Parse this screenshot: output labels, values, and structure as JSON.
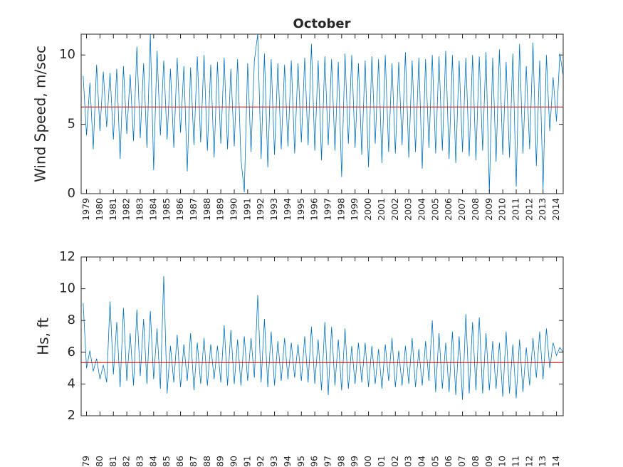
{
  "chart_data": [
    {
      "type": "line",
      "title": "October",
      "ylabel": "Wind Speed, m/sec",
      "x": [
        1978.75,
        1979,
        1979.25,
        1979.5,
        1979.75,
        1980,
        1980.25,
        1980.5,
        1980.75,
        1981,
        1981.25,
        1981.5,
        1981.75,
        1982,
        1982.25,
        1982.5,
        1982.75,
        1983,
        1983.25,
        1983.5,
        1983.75,
        1984,
        1984.25,
        1984.5,
        1984.75,
        1985,
        1985.25,
        1985.5,
        1985.75,
        1986,
        1986.25,
        1986.5,
        1986.75,
        1987,
        1987.25,
        1987.5,
        1987.75,
        1988,
        1988.25,
        1988.5,
        1988.75,
        1989,
        1989.25,
        1989.5,
        1989.75,
        1990,
        1990.25,
        1990.5,
        1990.75,
        1991,
        1991.25,
        1991.5,
        1991.75,
        1992,
        1992.25,
        1992.5,
        1992.75,
        1993,
        1993.25,
        1993.5,
        1993.75,
        1994,
        1994.25,
        1994.5,
        1994.75,
        1995,
        1995.25,
        1995.5,
        1995.75,
        1996,
        1996.25,
        1996.5,
        1996.75,
        1997,
        1997.25,
        1997.5,
        1997.75,
        1998,
        1998.25,
        1998.5,
        1998.75,
        1999,
        1999.25,
        1999.5,
        1999.75,
        2000,
        2000.25,
        2000.5,
        2000.75,
        2001,
        2001.25,
        2001.5,
        2001.75,
        2002,
        2002.25,
        2002.5,
        2002.75,
        2003,
        2003.25,
        2003.5,
        2003.75,
        2004,
        2004.25,
        2004.5,
        2004.75,
        2005,
        2005.25,
        2005.5,
        2005.75,
        2006,
        2006.25,
        2006.5,
        2006.75,
        2007,
        2007.25,
        2007.5,
        2007.75,
        2008,
        2008.25,
        2008.5,
        2008.75,
        2009,
        2009.25,
        2009.5,
        2009.75,
        2010,
        2010.25,
        2010.5,
        2010.75,
        2011,
        2011.25,
        2011.5,
        2011.75,
        2012,
        2012.25,
        2012.5,
        2012.75,
        2013,
        2013.25,
        2013.5,
        2013.75,
        2014,
        2014.25,
        2014.5
      ],
      "series": [
        {
          "color": "#0072bd",
          "values": [
            8.5,
            4.2,
            8.0,
            3.2,
            9.3,
            4.5,
            8.8,
            4.8,
            8.7,
            3.9,
            9.0,
            2.5,
            9.2,
            4.3,
            8.6,
            3.8,
            10.6,
            4.0,
            9.4,
            3.3,
            11.5,
            1.7,
            10.3,
            4.2,
            9.6,
            3.9,
            9.0,
            3.3,
            9.8,
            4.4,
            9.2,
            1.6,
            9.1,
            3.5,
            9.9,
            3.7,
            10.0,
            3.1,
            9.3,
            2.6,
            9.5,
            3.6,
            9.8,
            3.2,
            9.0,
            3.4,
            9.7,
            2.5,
            0.1,
            9.4,
            3.0,
            9.6,
            11.5,
            2.5,
            10.1,
            1.9,
            9.7,
            2.8,
            9.4,
            3.2,
            9.3,
            3.4,
            9.6,
            2.9,
            9.4,
            3.7,
            9.8,
            3.5,
            10.8,
            3.1,
            9.6,
            2.4,
            9.9,
            3.5,
            9.7,
            3.1,
            9.5,
            1.2,
            10.1,
            3.6,
            10.0,
            3.3,
            9.4,
            2.8,
            9.6,
            1.9,
            9.9,
            3.6,
            9.7,
            2.2,
            10.0,
            3.0,
            9.4,
            2.9,
            9.5,
            3.5,
            10.2,
            2.6,
            9.6,
            3.0,
            9.8,
            1.8,
            9.7,
            3.3,
            10.0,
            2.9,
            9.9,
            3.1,
            10.3,
            2.5,
            10.0,
            2.2,
            9.6,
            3.0,
            9.8,
            2.7,
            10.0,
            2.4,
            9.9,
            3.1,
            10.2,
            0.1,
            9.8,
            2.3,
            10.4,
            2.8,
            9.5,
            2.6,
            10.1,
            0.5,
            10.8,
            2.9,
            9.2,
            3.2,
            10.9,
            2.0,
            9.6,
            0.3,
            10.0,
            4.5,
            8.4,
            5.2,
            10.1,
            8.5
          ]
        }
      ],
      "mean_line": {
        "value": 6.25,
        "color": "#d00000"
      },
      "xlim": [
        1978.6,
        2014.5
      ],
      "xticks": [
        1979,
        1980,
        1981,
        1982,
        1983,
        1984,
        1985,
        1986,
        1987,
        1988,
        1989,
        1990,
        1991,
        1992,
        1993,
        1994,
        1995,
        1996,
        1997,
        1998,
        1999,
        2000,
        2001,
        2002,
        2003,
        2004,
        2005,
        2006,
        2007,
        2008,
        2009,
        2010,
        2011,
        2012,
        2013,
        2014
      ],
      "ylim": [
        0,
        11.5
      ],
      "yticks": [
        0,
        5,
        10
      ]
    },
    {
      "type": "line",
      "ylabel": "Hs, ft",
      "x": [
        1978.75,
        1979,
        1979.25,
        1979.5,
        1979.75,
        1980,
        1980.25,
        1980.5,
        1980.75,
        1981,
        1981.25,
        1981.5,
        1981.75,
        1982,
        1982.25,
        1982.5,
        1982.75,
        1983,
        1983.25,
        1983.5,
        1983.75,
        1984,
        1984.25,
        1984.5,
        1984.75,
        1985,
        1985.25,
        1985.5,
        1985.75,
        1986,
        1986.25,
        1986.5,
        1986.75,
        1987,
        1987.25,
        1987.5,
        1987.75,
        1988,
        1988.25,
        1988.5,
        1988.75,
        1989,
        1989.25,
        1989.5,
        1989.75,
        1990,
        1990.25,
        1990.5,
        1990.75,
        1991,
        1991.25,
        1991.5,
        1991.75,
        1992,
        1992.25,
        1992.5,
        1992.75,
        1993,
        1993.25,
        1993.5,
        1993.75,
        1994,
        1994.25,
        1994.5,
        1994.75,
        1995,
        1995.25,
        1995.5,
        1995.75,
        1996,
        1996.25,
        1996.5,
        1996.75,
        1997,
        1997.25,
        1997.5,
        1997.75,
        1998,
        1998.25,
        1998.5,
        1998.75,
        1999,
        1999.25,
        1999.5,
        1999.75,
        2000,
        2000.25,
        2000.5,
        2000.75,
        2001,
        2001.25,
        2001.5,
        2001.75,
        2002,
        2002.25,
        2002.5,
        2002.75,
        2003,
        2003.25,
        2003.5,
        2003.75,
        2004,
        2004.25,
        2004.5,
        2004.75,
        2005,
        2005.25,
        2005.5,
        2005.75,
        2006,
        2006.25,
        2006.5,
        2006.75,
        2007,
        2007.25,
        2007.5,
        2007.75,
        2008,
        2008.25,
        2008.5,
        2008.75,
        2009,
        2009.25,
        2009.5,
        2009.75,
        2010,
        2010.25,
        2010.5,
        2010.75,
        2011,
        2011.25,
        2011.5,
        2011.75,
        2012,
        2012.25,
        2012.5,
        2012.75,
        2013,
        2013.25,
        2013.5,
        2013.75,
        2014,
        2014.25,
        2014.5
      ],
      "series": [
        {
          "color": "#0072bd",
          "values": [
            9.1,
            5.0,
            6.1,
            4.8,
            5.6,
            4.3,
            5.2,
            4.1,
            9.2,
            4.6,
            7.9,
            3.8,
            8.8,
            4.2,
            7.2,
            3.9,
            8.7,
            4.5,
            8.1,
            4.0,
            8.6,
            4.3,
            7.5,
            3.7,
            10.8,
            3.4,
            6.4,
            4.1,
            7.1,
            3.8,
            6.5,
            4.2,
            7.2,
            3.6,
            6.6,
            4.0,
            6.9,
            3.9,
            6.5,
            4.3,
            6.4,
            4.1,
            7.7,
            3.9,
            7.4,
            4.0,
            6.8,
            3.9,
            7.0,
            4.2,
            6.9,
            4.4,
            9.6,
            4.1,
            8.1,
            3.8,
            7.3,
            3.9,
            6.7,
            4.2,
            6.9,
            4.3,
            6.6,
            4.4,
            6.5,
            4.2,
            7.0,
            4.1,
            7.6,
            4.0,
            6.8,
            3.6,
            7.9,
            3.3,
            7.6,
            3.9,
            6.8,
            3.6,
            7.5,
            3.7,
            6.4,
            4.0,
            6.6,
            4.1,
            6.6,
            3.8,
            6.4,
            4.0,
            6.2,
            3.7,
            6.5,
            4.2,
            6.9,
            3.8,
            6.1,
            3.9,
            6.4,
            4.0,
            6.9,
            3.8,
            6.2,
            3.9,
            6.7,
            4.2,
            8.0,
            3.5,
            7.2,
            3.7,
            6.6,
            3.5,
            7.3,
            3.3,
            7.0,
            3.0,
            8.4,
            3.4,
            7.9,
            3.6,
            8.2,
            3.4,
            7.2,
            3.6,
            6.7,
            3.7,
            6.6,
            3.2,
            7.3,
            3.4,
            6.5,
            3.1,
            6.8,
            3.5,
            6.3,
            3.9,
            6.9,
            4.4,
            7.3,
            4.3,
            7.5,
            5.0,
            6.6,
            5.8,
            6.3,
            6.0
          ]
        }
      ],
      "mean_line": {
        "value": 5.35,
        "color": "#d00000"
      },
      "xlim": [
        1978.6,
        2014.5
      ],
      "xticks": [
        {
          "value": 1979,
          "label": "79"
        },
        {
          "value": 1980,
          "label": "80"
        },
        {
          "value": 1981,
          "label": "81"
        },
        {
          "value": 1982,
          "label": "82"
        },
        {
          "value": 1983,
          "label": "83"
        },
        {
          "value": 1984,
          "label": "84"
        },
        {
          "value": 1985,
          "label": "85"
        },
        {
          "value": 1986,
          "label": "86"
        },
        {
          "value": 1987,
          "label": "87"
        },
        {
          "value": 1988,
          "label": "88"
        },
        {
          "value": 1989,
          "label": "89"
        },
        {
          "value": 1990,
          "label": "90"
        },
        {
          "value": 1991,
          "label": "91"
        },
        {
          "value": 1992,
          "label": "92"
        },
        {
          "value": 1993,
          "label": "93"
        },
        {
          "value": 1994,
          "label": "94"
        },
        {
          "value": 1995,
          "label": "95"
        },
        {
          "value": 1996,
          "label": "96"
        },
        {
          "value": 1997,
          "label": "97"
        },
        {
          "value": 1998,
          "label": "98"
        },
        {
          "value": 1999,
          "label": "99"
        },
        {
          "value": 2000,
          "label": "00"
        },
        {
          "value": 2001,
          "label": "01"
        },
        {
          "value": 2002,
          "label": "02"
        },
        {
          "value": 2003,
          "label": "03"
        },
        {
          "value": 2004,
          "label": "04"
        },
        {
          "value": 2005,
          "label": "05"
        },
        {
          "value": 2006,
          "label": "06"
        },
        {
          "value": 2007,
          "label": "07"
        },
        {
          "value": 2008,
          "label": "08"
        },
        {
          "value": 2009,
          "label": "09"
        },
        {
          "value": 2010,
          "label": "10"
        },
        {
          "value": 2011,
          "label": "11"
        },
        {
          "value": 2012,
          "label": "12"
        },
        {
          "value": 2013,
          "label": "13"
        },
        {
          "value": 2014,
          "label": "14"
        }
      ],
      "ylim": [
        2,
        12
      ],
      "yticks": [
        2,
        4,
        6,
        8,
        10,
        12
      ]
    }
  ]
}
